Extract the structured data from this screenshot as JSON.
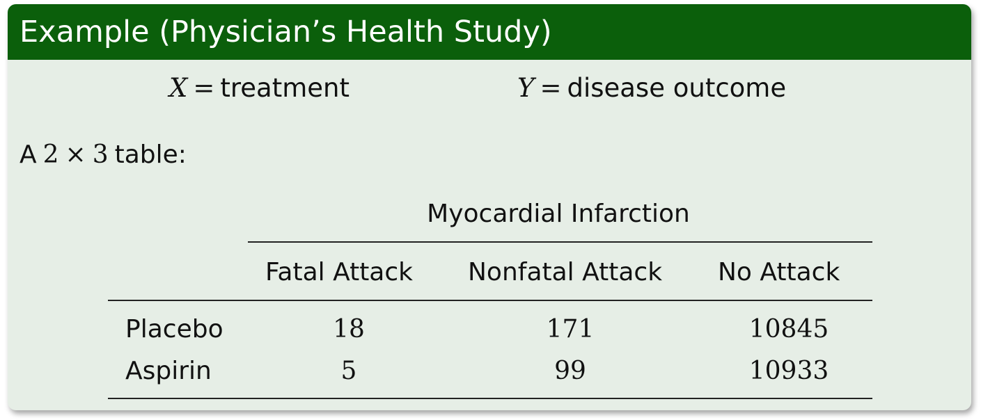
{
  "title": "Example (Physician’s Health Study)",
  "definitions": [
    {
      "variable": "X",
      "operator": "=",
      "meaning": "treatment"
    },
    {
      "variable": "Y",
      "operator": "=",
      "meaning": "disease outcome"
    }
  ],
  "intro": {
    "prefix": "A",
    "rows": "2",
    "times": "×",
    "cols": "3",
    "suffix": "table:"
  },
  "table": {
    "spanning_header": "Myocardial Infarction",
    "columns": [
      "Fatal Attack",
      "Nonfatal Attack",
      "No Attack"
    ],
    "rows": [
      {
        "label": "Placebo",
        "values": [
          "18",
          "171",
          "10845"
        ]
      },
      {
        "label": "Aspirin",
        "values": [
          "5",
          "99",
          "10933"
        ]
      }
    ]
  }
}
